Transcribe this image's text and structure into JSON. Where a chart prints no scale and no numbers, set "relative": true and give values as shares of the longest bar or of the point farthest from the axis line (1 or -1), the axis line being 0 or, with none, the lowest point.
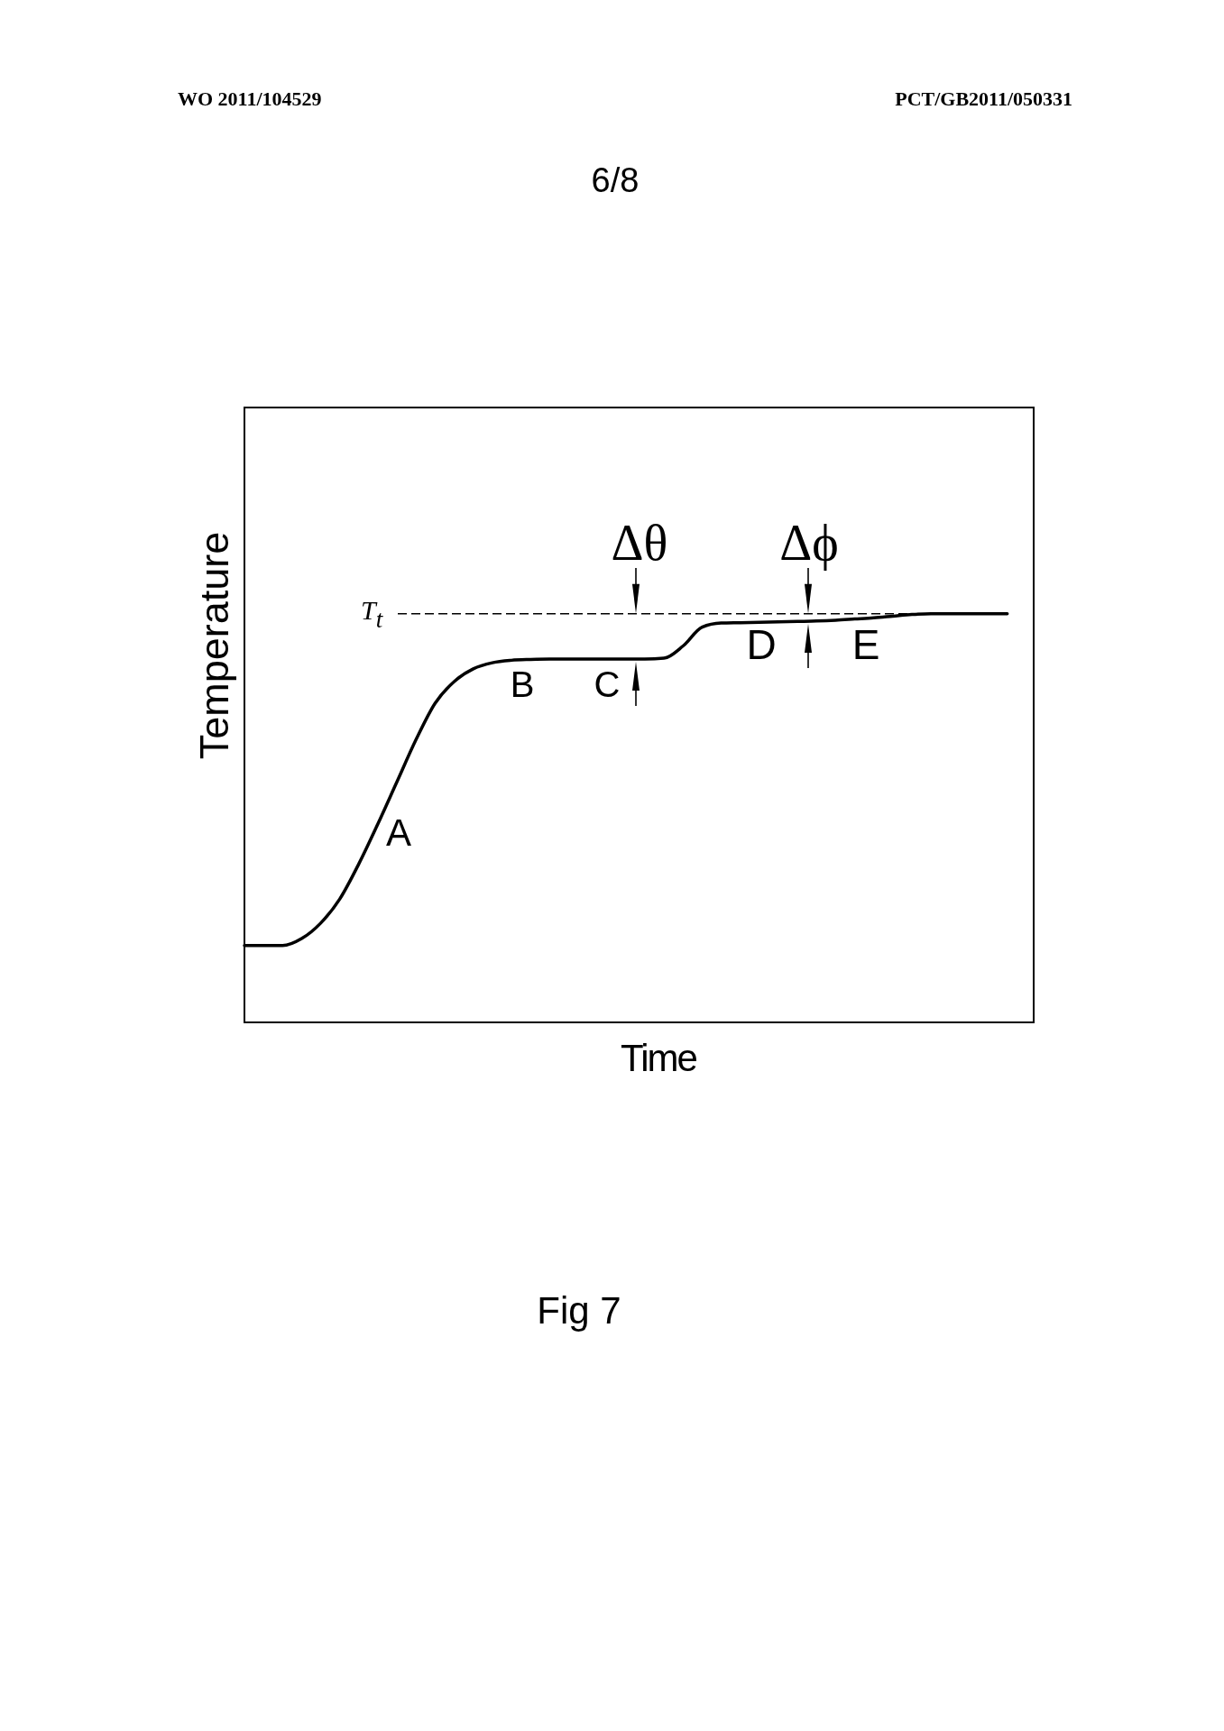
{
  "chart_data": {
    "type": "line",
    "xlabel": "Time",
    "ylabel": "Temperature",
    "relative": true,
    "categories": [
      null,
      null,
      null,
      null,
      null,
      null,
      null,
      null,
      null,
      null,
      null,
      null,
      null,
      null,
      null,
      null,
      null,
      null,
      null,
      null,
      null,
      null,
      null,
      null,
      null,
      null,
      null,
      null,
      null,
      null,
      null,
      null,
      null,
      null,
      null,
      null,
      null,
      null,
      null,
      null,
      null
    ],
    "series": [
      {
        "color": "#000000",
        "values": [
          0.188,
          0.188,
          0.188,
          0.205,
          0.243,
          0.302,
          0.388,
          0.486,
          0.589,
          0.692,
          0.781,
          0.834,
          0.865,
          0.88,
          0.886,
          0.888,
          0.889,
          0.889,
          0.889,
          0.889,
          0.889,
          0.889,
          0.891,
          0.921,
          0.967,
          0.977,
          0.978,
          0.979,
          0.98,
          0.981,
          0.982,
          0.984,
          0.987,
          0.99,
          0.994,
          0.998,
          1,
          1,
          1,
          1,
          1
        ]
      }
    ],
    "ref_lines": [
      {
        "axis": "y",
        "value": 1,
        "label": "T$_{t}$",
        "line_style": "dashed",
        "color": "#000000"
      }
    ],
    "annotations": [
      "WO 2011/104529",
      "PCT/GB2011/050331",
      "6/8",
      "A",
      "B",
      "C",
      "D",
      "E",
      "Δθ",
      "Δϕ",
      "Fig 7"
    ]
  }
}
